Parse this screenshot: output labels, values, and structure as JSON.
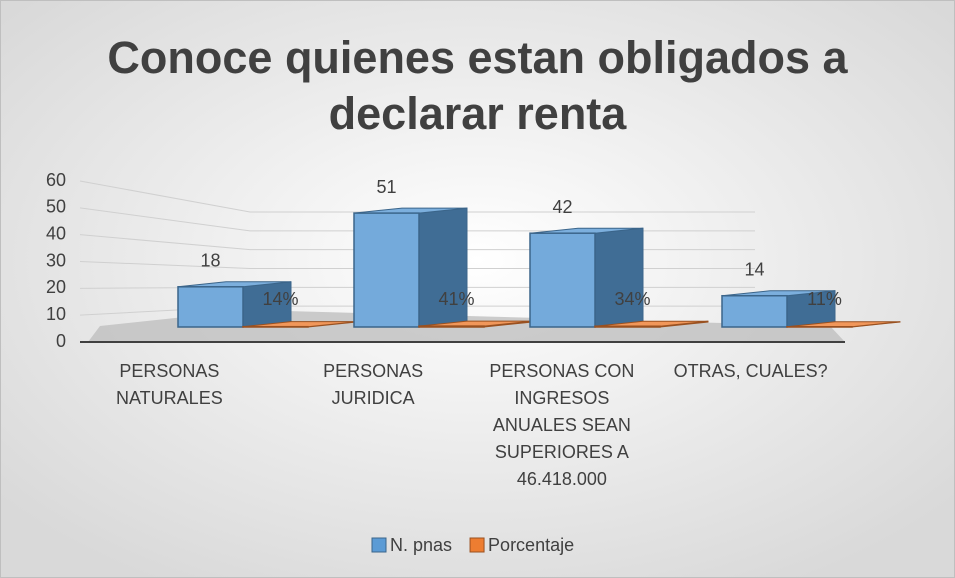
{
  "chart_data": {
    "type": "bar3d",
    "title": "Conoce quienes estan obligados a declarar renta",
    "categories": [
      "PERSONAS NATURALES",
      "PERSONAS JURIDICA",
      "PERSONAS CON INGRESOS ANUALES SEAN SUPERIORES A 46.418.000",
      "OTRAS, CUALES?"
    ],
    "series": [
      {
        "name": "N. pnas",
        "color": "#5b9bd5",
        "values": [
          18,
          51,
          42,
          14
        ]
      },
      {
        "name": "Porcentaje",
        "color": "#ed7d31",
        "values": [
          0.14,
          0.41,
          0.34,
          0.11
        ],
        "value_labels": [
          "14%",
          "41%",
          "34%",
          "11%"
        ]
      }
    ],
    "ylim": [
      0,
      60
    ],
    "yticks": [
      0,
      10,
      20,
      30,
      40,
      50,
      60
    ],
    "grid": true,
    "legend": "bottom"
  }
}
